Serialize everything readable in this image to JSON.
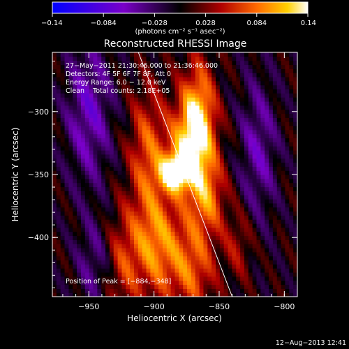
{
  "chart_data": {
    "type": "heatmap",
    "title": "Reconstructed RHESSI Image",
    "xlabel": "Heliocentric X (arcsec)",
    "ylabel": "Heliocentric Y (arcsec)",
    "xlim": [
      -978,
      -790
    ],
    "ylim": [
      -447,
      -253
    ],
    "x_ticks": [
      -950,
      -900,
      -850,
      -800
    ],
    "y_ticks": [
      -300,
      -350,
      -400
    ],
    "x_tick_labels": [
      "−950",
      "−900",
      "−850",
      "−800"
    ],
    "y_tick_labels": [
      "−300",
      "−350",
      "−400"
    ],
    "colorbar": {
      "min": -0.14,
      "max": 0.14,
      "ticks": [
        -0.14,
        -0.084,
        -0.028,
        0.028,
        0.084,
        0.14
      ],
      "tick_labels": [
        "−0.14",
        "−0.084",
        "−0.028",
        "0.028",
        "0.084",
        "0.14"
      ],
      "units_label": "(photons cm⁻² s⁻¹ asec⁻²)"
    },
    "info_lines": [
      "27−May−2011 21:30:46.000 to 21:36:46.000",
      "Detectors: 4F 5F 6F 7F 8F, Att 0",
      "Energy Range: 6.0 − 12.0 keV",
      "Clean    Total counts: 2.18E+05"
    ],
    "peak_text": "Position of Peak = [−884,−348]",
    "peak": {
      "x": -884,
      "y": -348
    },
    "limb_line": [
      [
        -912,
        -253
      ],
      [
        -840,
        -447
      ]
    ],
    "sources": [
      {
        "x": -884,
        "y": -348,
        "sx": 8,
        "sy": 10,
        "amp": 0.14
      },
      {
        "x": -872,
        "y": -325,
        "sx": 12,
        "sy": 25,
        "amp": 0.1
      },
      {
        "x": -866,
        "y": -300,
        "sx": 9,
        "sy": 30,
        "amp": 0.09
      },
      {
        "x": -860,
        "y": -368,
        "sx": 10,
        "sy": 22,
        "amp": 0.08
      },
      {
        "x": -905,
        "y": -330,
        "sx": 10,
        "sy": 35,
        "amp": 0.07
      },
      {
        "x": -898,
        "y": -405,
        "sx": 14,
        "sy": 30,
        "amp": 0.09
      },
      {
        "x": -870,
        "y": -425,
        "sx": 12,
        "sy": 25,
        "amp": 0.07
      },
      {
        "x": -925,
        "y": -420,
        "sx": 10,
        "sy": 30,
        "amp": 0.05
      },
      {
        "x": -835,
        "y": -405,
        "sx": 8,
        "sy": 20,
        "amp": 0.04
      },
      {
        "x": -950,
        "y": -300,
        "sx": 12,
        "sy": 40,
        "amp": -0.06
      },
      {
        "x": -820,
        "y": -330,
        "sx": 10,
        "sy": 40,
        "amp": -0.05
      },
      {
        "x": -945,
        "y": -420,
        "sx": 10,
        "sy": 25,
        "amp": -0.04
      }
    ],
    "stripes": {
      "amp": 0.022,
      "wavelength": 20,
      "angle_deg": 25
    },
    "colors": {
      "background": "#000000",
      "text": "#ffffff",
      "frame": "#ffffff",
      "limb_line": "#ffffff"
    }
  },
  "footer": {
    "timestamp": "12−Aug−2013 12:41"
  }
}
